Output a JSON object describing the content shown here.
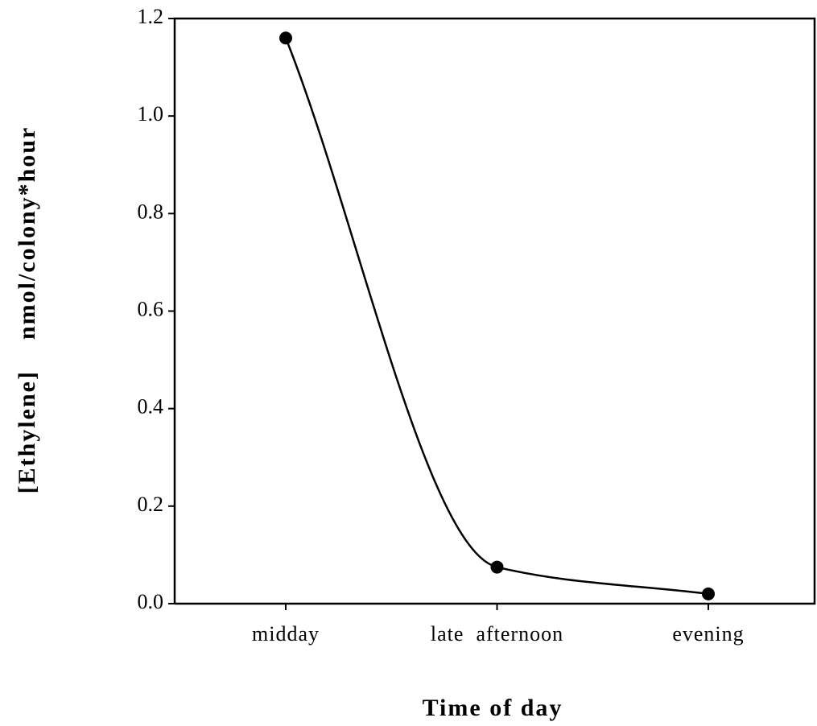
{
  "chart_data": {
    "type": "line",
    "x_label": "Time of day",
    "y_label": "[Ethylene]    nmol/colony*hour",
    "categories": [
      "midday",
      "late  afternoon",
      "evening"
    ],
    "series": [
      {
        "name": "Ethylene",
        "color": "#000000",
        "values": [
          1.16,
          0.075,
          0.02
        ]
      }
    ],
    "ylim": [
      0,
      1.2
    ],
    "yticks": [
      {
        "value": 0,
        "label": "0.0"
      },
      0.2,
      0.4,
      0.6,
      0.8,
      {
        "value": 1,
        "label": "1.0"
      },
      1.2
    ],
    "grid": false
  }
}
